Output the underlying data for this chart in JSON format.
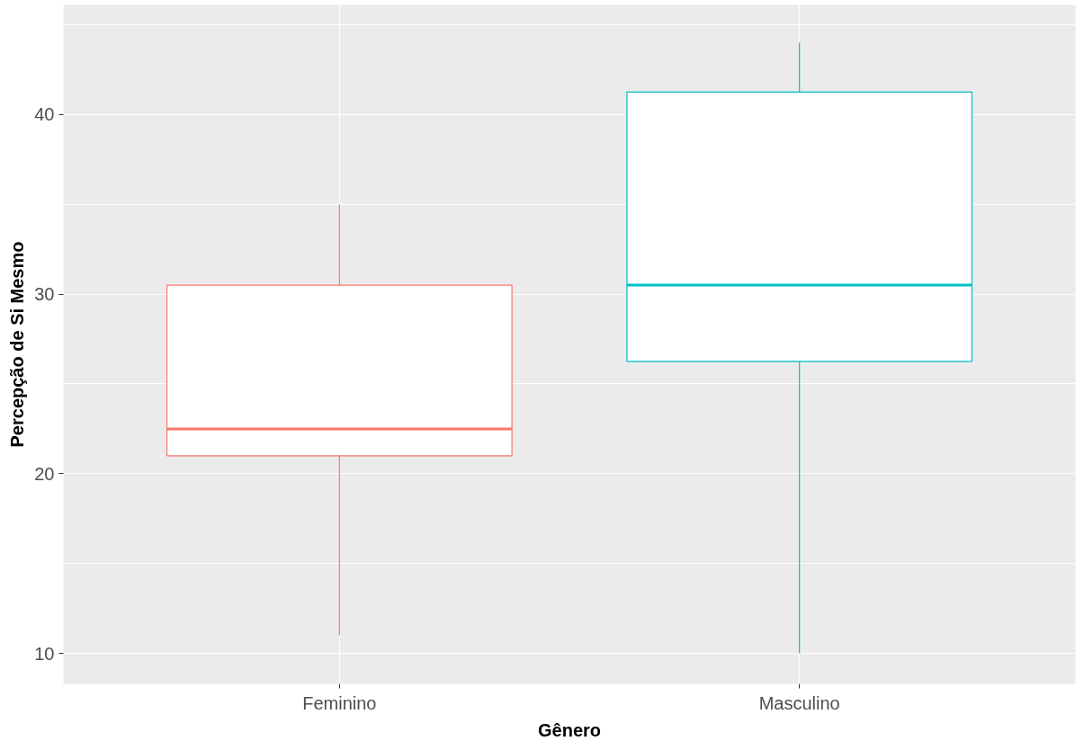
{
  "chart_data": {
    "type": "box",
    "xlabel": "Gênero",
    "ylabel": "Percepção de Si Mesmo",
    "categories": [
      "Feminino",
      "Masculino"
    ],
    "colors": [
      "#f8766d",
      "#00bfc4"
    ],
    "boxes": [
      {
        "low": 11,
        "q1": 21,
        "median": 22.5,
        "q3": 30.5,
        "high": 35
      },
      {
        "low": 10,
        "q1": 26.25,
        "median": 30.5,
        "q3": 41.25,
        "high": 44
      }
    ],
    "ylim": [
      8.3,
      46.1
    ],
    "yticks": [
      10,
      {
        "value": 15,
        "label": null
      },
      20,
      {
        "value": 25,
        "label": null
      },
      30,
      {
        "value": 35,
        "label": null
      },
      40,
      {
        "value": 45,
        "label": null
      }
    ],
    "grid": true
  }
}
